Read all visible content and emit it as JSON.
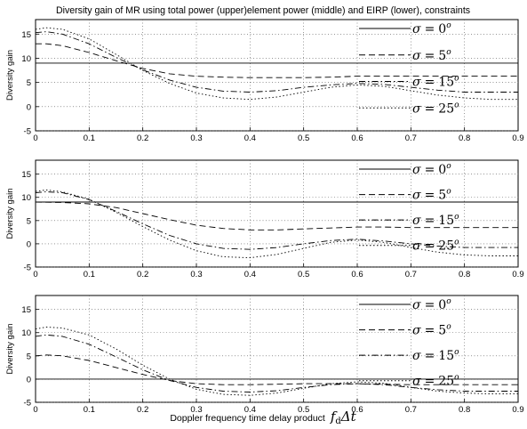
{
  "title": "Diversity gain of MR using total power (upper)element power (middle) and EIRP (lower), constraints",
  "xlabel": {
    "text": "Doppler frequency time  delay product",
    "math_var": "f",
    "math_sub": "d",
    "math_rest": "Δt"
  },
  "legend_entries": [
    {
      "sigma": "σ",
      "eq": "=",
      "value": "0",
      "unit": "o",
      "dash": "solid"
    },
    {
      "sigma": "σ",
      "eq": "=",
      "value": "5",
      "unit": "o",
      "dash": "dashed"
    },
    {
      "sigma": "σ",
      "eq": "=",
      "value": "15",
      "unit": "o",
      "dash": "dashdot"
    },
    {
      "sigma": "σ",
      "eq": "=",
      "value": "25",
      "unit": "o",
      "dash": "dotted"
    }
  ],
  "chart_data": [
    {
      "type": "line",
      "panel": "upper",
      "ylabel": "Diversity gain",
      "xlim": [
        0,
        0.9
      ],
      "ylim": [
        -5,
        18
      ],
      "xticks": [
        "0",
        "0.1",
        "0.2",
        "0.3",
        "0.4",
        "0.5",
        "0.6",
        "0.7",
        "0.8",
        "0.9"
      ],
      "yticks": [
        "-5",
        "0",
        "5",
        "10",
        "15"
      ],
      "grid": true,
      "legend_position": "right",
      "series": [
        {
          "name": "σ = 0°",
          "x": [
            0,
            0.9
          ],
          "y": [
            9,
            9
          ]
        },
        {
          "name": "σ = 5°",
          "x": [
            0,
            0.02,
            0.05,
            0.1,
            0.15,
            0.2,
            0.25,
            0.3,
            0.35,
            0.4,
            0.45,
            0.5,
            0.55,
            0.6,
            0.65,
            0.7,
            0.75,
            0.8,
            0.85,
            0.9
          ],
          "y": [
            13,
            13,
            12.6,
            11.2,
            9.5,
            7.9,
            6.8,
            6.3,
            6.1,
            6.0,
            6.0,
            6.0,
            6.1,
            6.3,
            6.3,
            6.3,
            6.3,
            6.3,
            6.3,
            6.3
          ]
        },
        {
          "name": "σ = 15°",
          "x": [
            0,
            0.02,
            0.05,
            0.1,
            0.15,
            0.2,
            0.25,
            0.3,
            0.35,
            0.4,
            0.45,
            0.5,
            0.55,
            0.6,
            0.65,
            0.7,
            0.75,
            0.8,
            0.85,
            0.9
          ],
          "y": [
            15.3,
            15.5,
            15,
            13,
            10.2,
            7.6,
            5.5,
            4.0,
            3.2,
            3.0,
            3.3,
            4.0,
            4.5,
            4.8,
            4.6,
            4.0,
            3.4,
            3.0,
            3.0,
            3.0
          ]
        },
        {
          "name": "σ = 25°",
          "x": [
            0,
            0.02,
            0.05,
            0.1,
            0.15,
            0.2,
            0.25,
            0.3,
            0.35,
            0.4,
            0.45,
            0.5,
            0.55,
            0.6,
            0.65,
            0.7,
            0.75,
            0.8,
            0.85,
            0.9
          ],
          "y": [
            16,
            16.3,
            16,
            14,
            10.8,
            7.5,
            4.8,
            2.8,
            1.8,
            1.5,
            2.0,
            3.0,
            4.0,
            4.5,
            4.2,
            3.3,
            2.4,
            1.8,
            1.5,
            1.5
          ]
        }
      ]
    },
    {
      "type": "line",
      "panel": "middle",
      "ylabel": "Diversity gain",
      "xlim": [
        0,
        0.9
      ],
      "ylim": [
        -5,
        18
      ],
      "xticks": [
        "0",
        "0.1",
        "0.2",
        "0.3",
        "0.4",
        "0.5",
        "0.6",
        "0.7",
        "0.8",
        "0.9"
      ],
      "yticks": [
        "-5",
        "0",
        "5",
        "10",
        "15"
      ],
      "grid": true,
      "legend_position": "right",
      "series": [
        {
          "name": "σ = 0°",
          "x": [
            0,
            0.9
          ],
          "y": [
            9,
            9
          ]
        },
        {
          "name": "σ = 5°",
          "x": [
            0,
            0.05,
            0.1,
            0.15,
            0.2,
            0.25,
            0.3,
            0.35,
            0.4,
            0.45,
            0.5,
            0.55,
            0.6,
            0.65,
            0.7,
            0.75,
            0.8,
            0.85,
            0.9
          ],
          "y": [
            9,
            8.9,
            8.6,
            7.8,
            6.5,
            5.2,
            4.0,
            3.3,
            3.0,
            3.0,
            3.2,
            3.4,
            3.6,
            3.6,
            3.5,
            3.5,
            3.5,
            3.5,
            3.5
          ]
        },
        {
          "name": "σ = 15°",
          "x": [
            0,
            0.02,
            0.05,
            0.1,
            0.15,
            0.2,
            0.25,
            0.3,
            0.35,
            0.4,
            0.45,
            0.5,
            0.55,
            0.6,
            0.65,
            0.7,
            0.75,
            0.8,
            0.85,
            0.9
          ],
          "y": [
            11,
            11.2,
            11,
            9.5,
            7.0,
            4.3,
            1.8,
            0.0,
            -1.0,
            -1.2,
            -0.8,
            0.0,
            0.7,
            1.0,
            0.6,
            0.0,
            -0.5,
            -0.8,
            -0.8,
            -0.8
          ]
        },
        {
          "name": "σ = 25°",
          "x": [
            0,
            0.02,
            0.05,
            0.1,
            0.15,
            0.2,
            0.25,
            0.3,
            0.35,
            0.4,
            0.45,
            0.5,
            0.55,
            0.6,
            0.65,
            0.7,
            0.75,
            0.8,
            0.85,
            0.9
          ],
          "y": [
            11.3,
            11.6,
            11.2,
            9.6,
            6.8,
            3.7,
            0.8,
            -1.5,
            -2.8,
            -3.0,
            -2.3,
            -1.0,
            0.3,
            0.8,
            0.3,
            -0.8,
            -1.8,
            -2.4,
            -2.6,
            -2.6
          ]
        }
      ]
    },
    {
      "type": "line",
      "panel": "lower",
      "ylabel": "Diversity gain",
      "xlim": [
        0,
        0.9
      ],
      "ylim": [
        -5,
        18
      ],
      "xticks": [
        "0",
        "0.1",
        "0.2",
        "0.3",
        "0.4",
        "0.5",
        "0.6",
        "0.7",
        "0.8",
        "0.9"
      ],
      "yticks": [
        "-5",
        "0",
        "5",
        "10",
        "15"
      ],
      "grid": true,
      "legend_position": "right",
      "series": [
        {
          "name": "σ = 0°",
          "x": [
            0,
            0.9
          ],
          "y": [
            0,
            0
          ]
        },
        {
          "name": "σ = 5°",
          "x": [
            0,
            0.02,
            0.05,
            0.1,
            0.15,
            0.2,
            0.25,
            0.3,
            0.35,
            0.4,
            0.45,
            0.5,
            0.55,
            0.6,
            0.65,
            0.7,
            0.75,
            0.8,
            0.85,
            0.9
          ],
          "y": [
            5,
            5.2,
            5,
            4.0,
            2.5,
            1.0,
            -0.3,
            -1.0,
            -1.2,
            -1.2,
            -1.1,
            -1.0,
            -1.0,
            -1.0,
            -1.1,
            -1.2,
            -1.2,
            -1.2,
            -1.2,
            -1.2
          ]
        },
        {
          "name": "σ = 15°",
          "x": [
            0,
            0.02,
            0.05,
            0.1,
            0.15,
            0.2,
            0.25,
            0.3,
            0.35,
            0.4,
            0.45,
            0.5,
            0.55,
            0.6,
            0.65,
            0.7,
            0.75,
            0.8,
            0.85,
            0.9
          ],
          "y": [
            9.2,
            9.5,
            9.2,
            7.5,
            4.8,
            2.0,
            -0.3,
            -1.8,
            -2.6,
            -2.8,
            -2.5,
            -1.8,
            -1.2,
            -1.0,
            -1.2,
            -1.8,
            -2.3,
            -2.6,
            -2.6,
            -2.6
          ]
        },
        {
          "name": "σ = 25°",
          "x": [
            0,
            0.02,
            0.05,
            0.1,
            0.15,
            0.2,
            0.25,
            0.3,
            0.35,
            0.4,
            0.45,
            0.5,
            0.55,
            0.6,
            0.65,
            0.7,
            0.75,
            0.8,
            0.85,
            0.9
          ],
          "y": [
            10.8,
            11.2,
            11,
            9.5,
            6.5,
            3.0,
            0.0,
            -2.2,
            -3.3,
            -3.5,
            -3.0,
            -2.0,
            -1.0,
            -0.6,
            -0.9,
            -1.8,
            -2.6,
            -3.0,
            -3.2,
            -3.2
          ]
        }
      ]
    }
  ]
}
